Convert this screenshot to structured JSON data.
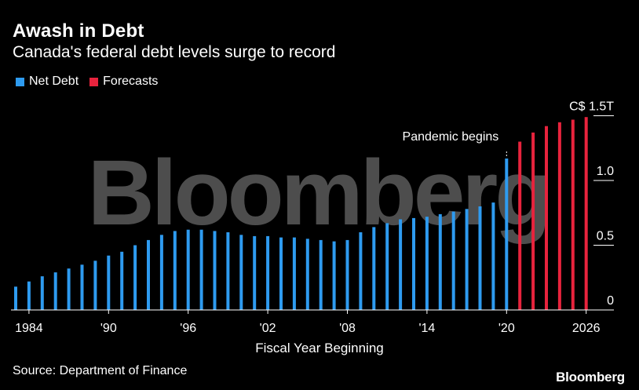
{
  "header": {
    "title": "Awash in Debt",
    "subtitle": "Canada's federal debt levels surge to record"
  },
  "legend": [
    {
      "label": "Net Debt",
      "color": "#2e9bf0"
    },
    {
      "label": "Forecasts",
      "color": "#e8233d"
    }
  ],
  "footer": {
    "source": "Source: Department of Finance",
    "brand": "Bloomberg"
  },
  "watermark": "Bloomberg",
  "chart_data": {
    "type": "bar",
    "xlabel": "Fiscal Year Beginning",
    "ylabel": "",
    "ylim": [
      0,
      1.5
    ],
    "grid": false,
    "legend_position": "top-left",
    "y_ticks": [
      {
        "value": 0,
        "label": "0"
      },
      {
        "value": 0.5,
        "label": "0.5"
      },
      {
        "value": 1.0,
        "label": "1.0"
      },
      {
        "value": 1.5,
        "label": "C$ 1.5T"
      }
    ],
    "x_ticks": [
      {
        "year": 1984,
        "label": "1984"
      },
      {
        "year": 1990,
        "label": "'90"
      },
      {
        "year": 1996,
        "label": "'96"
      },
      {
        "year": 2002,
        "label": "'02"
      },
      {
        "year": 2008,
        "label": "'08"
      },
      {
        "year": 2014,
        "label": "'14"
      },
      {
        "year": 2020,
        "label": "'20"
      },
      {
        "year": 2026,
        "label": "2026"
      }
    ],
    "annotation": {
      "text": "Pandemic begins",
      "year": 2020
    },
    "series": [
      {
        "name": "Net Debt",
        "color": "#2e9bf0",
        "years": [
          1983,
          1984,
          1985,
          1986,
          1987,
          1988,
          1989,
          1990,
          1991,
          1992,
          1993,
          1994,
          1995,
          1996,
          1997,
          1998,
          1999,
          2000,
          2001,
          2002,
          2003,
          2004,
          2005,
          2006,
          2007,
          2008,
          2009,
          2010,
          2011,
          2012,
          2013,
          2014,
          2015,
          2016,
          2017,
          2018,
          2019,
          2020
        ],
        "values": [
          0.18,
          0.22,
          0.26,
          0.29,
          0.32,
          0.35,
          0.38,
          0.42,
          0.45,
          0.5,
          0.54,
          0.58,
          0.61,
          0.62,
          0.62,
          0.61,
          0.6,
          0.58,
          0.57,
          0.57,
          0.56,
          0.56,
          0.55,
          0.54,
          0.53,
          0.54,
          0.6,
          0.64,
          0.67,
          0.7,
          0.71,
          0.72,
          0.74,
          0.76,
          0.78,
          0.8,
          0.83,
          1.17
        ]
      },
      {
        "name": "Forecasts",
        "color": "#e8233d",
        "years": [
          2021,
          2022,
          2023,
          2024,
          2025,
          2026
        ],
        "values": [
          1.3,
          1.37,
          1.42,
          1.45,
          1.47,
          1.49
        ]
      }
    ]
  }
}
